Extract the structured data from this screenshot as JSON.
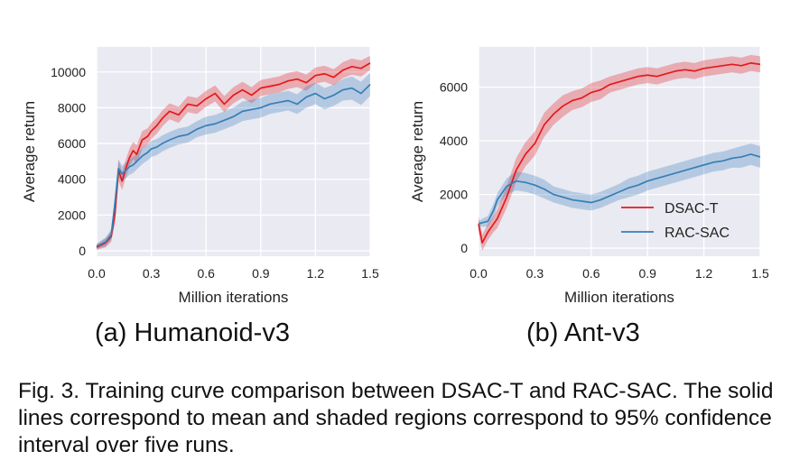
{
  "chart_data": [
    {
      "type": "line",
      "subcaption": "(a) Humanoid-v3",
      "xlabel": "Million iterations",
      "ylabel": "Average return",
      "xlim": [
        0,
        1.5
      ],
      "ylim": [
        -300,
        11400
      ],
      "xticks": [
        "0.0",
        "0.3",
        "0.6",
        "0.9",
        "1.2",
        "1.5"
      ],
      "xtick_values": [
        0,
        0.3,
        0.6,
        0.9,
        1.2,
        1.5
      ],
      "yticks": [
        "0",
        "2000",
        "4000",
        "6000",
        "8000",
        "10000"
      ],
      "ytick_values": [
        0,
        2000,
        4000,
        6000,
        8000,
        10000
      ],
      "grid": true,
      "legend": null,
      "series": [
        {
          "name": "DSAC-T",
          "color": "#e41a1c",
          "x": [
            0,
            0.05,
            0.08,
            0.1,
            0.12,
            0.14,
            0.16,
            0.18,
            0.2,
            0.22,
            0.25,
            0.28,
            0.3,
            0.33,
            0.36,
            0.4,
            0.45,
            0.5,
            0.55,
            0.6,
            0.65,
            0.7,
            0.75,
            0.8,
            0.85,
            0.9,
            0.95,
            1.0,
            1.05,
            1.1,
            1.15,
            1.2,
            1.25,
            1.3,
            1.35,
            1.4,
            1.45,
            1.5
          ],
          "y": [
            200,
            450,
            800,
            2000,
            4500,
            3900,
            4600,
            5200,
            5600,
            5400,
            6200,
            6400,
            6700,
            7000,
            7400,
            7800,
            7600,
            8200,
            8100,
            8500,
            8800,
            8200,
            8700,
            9000,
            8700,
            9100,
            9200,
            9300,
            9500,
            9600,
            9400,
            9800,
            9900,
            9700,
            10100,
            10300,
            10200,
            10500
          ],
          "band": [
            150,
            250,
            300,
            500,
            600,
            500,
            500,
            500,
            500,
            500,
            500,
            450,
            450,
            450,
            450,
            450,
            450,
            450,
            450,
            450,
            450,
            450,
            450,
            450,
            450,
            450,
            450,
            450,
            450,
            450,
            450,
            450,
            450,
            450,
            450,
            450,
            450,
            400
          ]
        },
        {
          "name": "RAC-SAC",
          "color": "#377eb8",
          "x": [
            0,
            0.05,
            0.08,
            0.1,
            0.12,
            0.14,
            0.16,
            0.18,
            0.2,
            0.22,
            0.25,
            0.28,
            0.3,
            0.33,
            0.36,
            0.4,
            0.45,
            0.5,
            0.55,
            0.6,
            0.65,
            0.7,
            0.75,
            0.8,
            0.85,
            0.9,
            0.95,
            1.0,
            1.05,
            1.1,
            1.15,
            1.2,
            1.25,
            1.3,
            1.35,
            1.4,
            1.45,
            1.5
          ],
          "y": [
            250,
            500,
            900,
            2600,
            4600,
            4300,
            4500,
            4700,
            4800,
            5000,
            5300,
            5500,
            5700,
            5800,
            6000,
            6200,
            6400,
            6500,
            6800,
            7000,
            7100,
            7300,
            7500,
            7800,
            7900,
            8000,
            8200,
            8300,
            8400,
            8200,
            8600,
            8800,
            8500,
            8700,
            9000,
            9100,
            8800,
            9300
          ],
          "band": [
            150,
            250,
            300,
            500,
            500,
            450,
            450,
            450,
            450,
            450,
            450,
            450,
            450,
            450,
            450,
            450,
            450,
            450,
            450,
            500,
            500,
            500,
            500,
            550,
            550,
            550,
            550,
            550,
            550,
            550,
            600,
            600,
            600,
            600,
            600,
            650,
            650,
            650
          ]
        }
      ]
    },
    {
      "type": "line",
      "subcaption": "(b) Ant-v3",
      "xlabel": "Million iterations",
      "ylabel": "Average return",
      "xlim": [
        0,
        1.5
      ],
      "ylim": [
        -300,
        7500
      ],
      "xticks": [
        "0.0",
        "0.3",
        "0.6",
        "0.9",
        "1.2",
        "1.5"
      ],
      "xtick_values": [
        0,
        0.3,
        0.6,
        0.9,
        1.2,
        1.5
      ],
      "yticks": [
        "0",
        "2000",
        "4000",
        "6000"
      ],
      "ytick_values": [
        0,
        2000,
        4000,
        6000
      ],
      "grid": true,
      "legend": "lower-right",
      "series": [
        {
          "name": "DSAC-T",
          "color": "#e41a1c",
          "x": [
            0,
            0.02,
            0.05,
            0.08,
            0.1,
            0.15,
            0.2,
            0.25,
            0.3,
            0.35,
            0.4,
            0.45,
            0.5,
            0.55,
            0.6,
            0.65,
            0.7,
            0.75,
            0.8,
            0.85,
            0.9,
            0.95,
            1.0,
            1.05,
            1.1,
            1.15,
            1.2,
            1.25,
            1.3,
            1.35,
            1.4,
            1.45,
            1.5
          ],
          "y": [
            900,
            200,
            600,
            900,
            1100,
            1900,
            2900,
            3500,
            3900,
            4600,
            5000,
            5300,
            5500,
            5600,
            5800,
            5900,
            6100,
            6200,
            6300,
            6400,
            6450,
            6400,
            6500,
            6600,
            6650,
            6600,
            6700,
            6750,
            6800,
            6850,
            6800,
            6900,
            6850
          ],
          "band": [
            300,
            300,
            300,
            300,
            350,
            400,
            450,
            450,
            450,
            450,
            400,
            400,
            350,
            350,
            350,
            350,
            300,
            300,
            300,
            300,
            300,
            300,
            300,
            300,
            300,
            300,
            300,
            300,
            300,
            300,
            300,
            300,
            300
          ]
        },
        {
          "name": "RAC-SAC",
          "color": "#377eb8",
          "x": [
            0,
            0.02,
            0.05,
            0.08,
            0.1,
            0.15,
            0.2,
            0.25,
            0.3,
            0.35,
            0.4,
            0.45,
            0.5,
            0.55,
            0.6,
            0.65,
            0.7,
            0.75,
            0.8,
            0.85,
            0.9,
            0.95,
            1.0,
            1.05,
            1.1,
            1.15,
            1.2,
            1.25,
            1.3,
            1.35,
            1.4,
            1.45,
            1.5
          ],
          "y": [
            900,
            950,
            1000,
            1400,
            1800,
            2300,
            2500,
            2450,
            2350,
            2200,
            2000,
            1900,
            1800,
            1750,
            1700,
            1800,
            1950,
            2100,
            2250,
            2350,
            2500,
            2600,
            2700,
            2800,
            2900,
            3000,
            3100,
            3200,
            3250,
            3350,
            3400,
            3500,
            3400
          ],
          "band": [
            100,
            150,
            200,
            250,
            250,
            300,
            350,
            350,
            350,
            350,
            300,
            300,
            300,
            300,
            300,
            300,
            300,
            300,
            350,
            350,
            350,
            350,
            350,
            350,
            350,
            350,
            350,
            350,
            350,
            350,
            400,
            400,
            400
          ]
        }
      ]
    }
  ],
  "caption": "Fig. 3. Training curve comparison between DSAC-T and RAC-SAC. The solid lines correspond to mean and shaded regions correspond to 95% confidence interval over five runs."
}
